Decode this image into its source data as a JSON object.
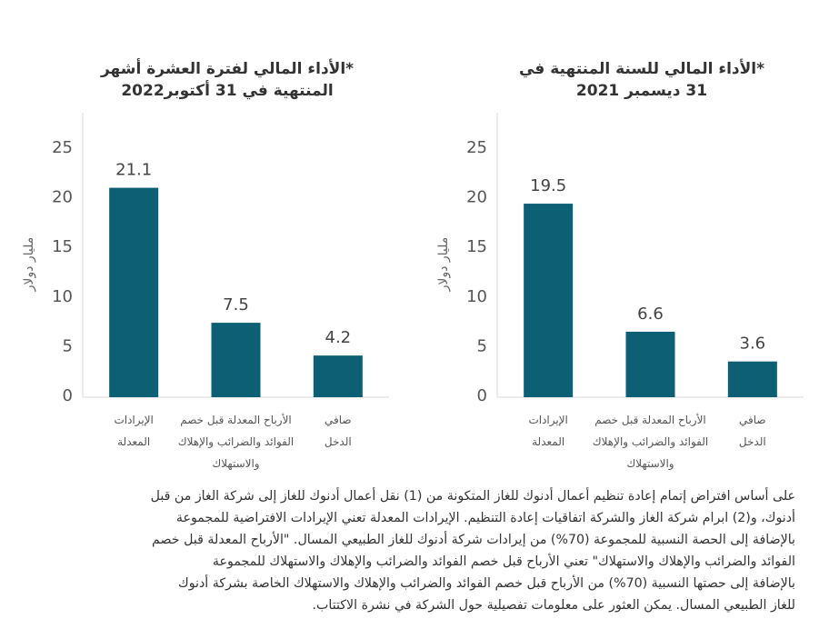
{
  "chart_data": [
    {
      "type": "bar",
      "title": "*الأداء المالي لفترة العشرة أشهر المنتهية في 31 أكتوبر2022",
      "title_lines": [
        "*الأداء المالي لفترة العشرة أشهر",
        "المنتهية في 31 أكتوبر2022"
      ],
      "ylabel": "مليار دولار",
      "ylim": [
        0,
        25
      ],
      "yticks": [
        0,
        5,
        10,
        15,
        20,
        25
      ],
      "categories": [
        "الإيرادات المعدلة",
        "الأرباح المعدلة قبل خصم الفوائد والضرائب والإهلاك والاستهلاك",
        "صافي الدخل"
      ],
      "category_lines": [
        [
          "الإيرادات",
          "المعدلة"
        ],
        [
          "الأرباح المعدلة قبل خصم",
          "الفوائد والضرائب والإهلاك",
          "والاستهلاك"
        ],
        [
          "صافي",
          "الدخل"
        ]
      ],
      "values": [
        21.1,
        7.5,
        4.2
      ],
      "data_labels": [
        "21.1",
        "7.5",
        "4.2"
      ],
      "grid": false,
      "bar_color": "#0d5f73"
    },
    {
      "type": "bar",
      "title": "*الأداء المالي للسنة المنتهية في 31 ديسمبر 2021",
      "title_lines": [
        "*الأداء المالي للسنة المنتهية في",
        "31 ديسمبر 2021"
      ],
      "ylabel": "مليار دولار",
      "ylim": [
        0,
        25
      ],
      "yticks": [
        0,
        5,
        10,
        15,
        20,
        25
      ],
      "categories": [
        "الإيرادات المعدلة",
        "الأرباح المعدلة قبل خصم الفوائد والضرائب والإهلاك والاستهلاك",
        "صافي الدخل"
      ],
      "category_lines": [
        [
          "الإيرادات",
          "المعدلة"
        ],
        [
          "الأرباح المعدلة قبل خصم",
          "الفوائد والضرائب والإهلاك",
          "والاستهلاك"
        ],
        [
          "صافي",
          "الدخل"
        ]
      ],
      "values": [
        19.5,
        6.6,
        3.6
      ],
      "data_labels": [
        "19.5",
        "6.6",
        "3.6"
      ],
      "grid": false,
      "bar_color": "#0d5f73"
    }
  ],
  "footnote_lines": [
    "على أساس افتراض إتمام إعادة تنظيم أعمال أدنوك للغاز المتكونة من (1) نقل أعمال أدنوك للغاز إلى شركة الغاز من قبل",
    "أدنوك، و(2) ابرام شركة الغاز والشركة اتفاقيات إعادة التنظيم. الإيرادات المعدلة تعني الإيرادات الافتراضية للمجموعة",
    "بالإضافة إلى الحصة النسبية للمجموعة (70%) من إيرادات شركة أدنوك للغاز الطبيعي المسال. \"الأرباح المعدلة قبل خصم",
    "الفوائد والضرائب والإهلاك والاستهلاك\" تعني الأرباح قبل خصم الفوائد والضرائب والإهلاك والاستهلاك للمجموعة",
    "بالإضافة إلى حصتها النسبية (70%) من الأرباح قبل خصم الفوائد والضرائب والإهلاك والاستهلاك الخاصة بشركة أدنوك",
    "للغاز الطبيعي المسال. يمكن العثور على معلومات تفصيلية حول الشركة في نشرة الاكتتاب."
  ]
}
